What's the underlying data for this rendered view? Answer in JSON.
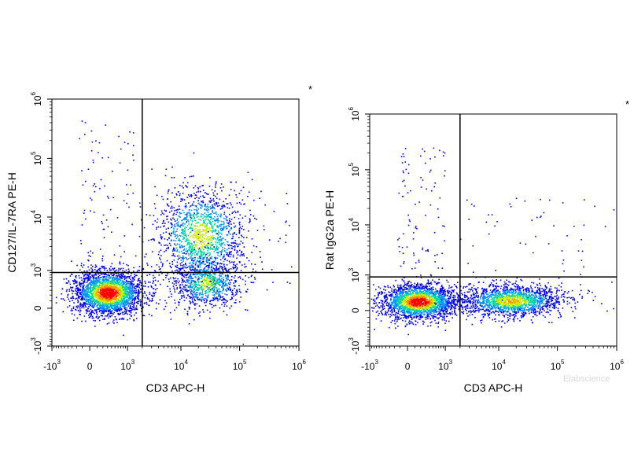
{
  "chart_data": [
    {
      "type": "scatter",
      "subtype": "flow-cytometry-density-dot-plot",
      "xlabel": "CD3 APC-H",
      "ylabel": "CD127/IL-7RA PE-H",
      "x_scale": "biexponential",
      "y_scale": "biexponential",
      "xlim": [
        -1000,
        1000000
      ],
      "ylim": [
        -1000,
        1000000
      ],
      "x_ticks": [
        {
          "value": -1000,
          "base": "-10",
          "exp": "3"
        },
        {
          "value": 0,
          "base": "0",
          "exp": ""
        },
        {
          "value": 1000,
          "base": "10",
          "exp": "3"
        },
        {
          "value": 10000,
          "base": "10",
          "exp": "4"
        },
        {
          "value": 100000,
          "base": "10",
          "exp": "5"
        },
        {
          "value": 1000000,
          "base": "10",
          "exp": "6"
        }
      ],
      "y_ticks": [
        {
          "value": -1000,
          "base": "-10",
          "exp": "3"
        },
        {
          "value": 0,
          "base": "0",
          "exp": ""
        },
        {
          "value": 1000,
          "base": "10",
          "exp": "3"
        },
        {
          "value": 10000,
          "base": "10",
          "exp": "4"
        },
        {
          "value": 100000,
          "base": "10",
          "exp": "5"
        },
        {
          "value": 1000000,
          "base": "10",
          "exp": "6"
        }
      ],
      "quadrant_gate": {
        "x": 2000,
        "y": 900
      },
      "corner_mark": "*",
      "populations": [
        {
          "name_role": "CD3-negative cluster",
          "x_center": 350,
          "y_center": 200,
          "relative_density": "very high (red core)"
        },
        {
          "name_role": "CD3-positive CD127+ cluster",
          "x_center": 14000,
          "y_center": 2500,
          "relative_density": "high"
        },
        {
          "name_role": "CD3-positive CD127-low tail",
          "x_center": 16000,
          "y_center": 400,
          "relative_density": "medium"
        }
      ],
      "color_scale": [
        "#0000ff",
        "#00a0ff",
        "#00e080",
        "#ffff00",
        "#ff8000",
        "#ff0000"
      ]
    },
    {
      "type": "scatter",
      "subtype": "flow-cytometry-density-dot-plot",
      "xlabel": "CD3 APC-H",
      "ylabel": "Rat IgG2a PE-H",
      "x_scale": "biexponential",
      "y_scale": "biexponential",
      "xlim": [
        -1000,
        1000000
      ],
      "ylim": [
        -1000,
        1000000
      ],
      "x_ticks": [
        {
          "value": -1000,
          "base": "-10",
          "exp": "3"
        },
        {
          "value": 0,
          "base": "0",
          "exp": ""
        },
        {
          "value": 1000,
          "base": "10",
          "exp": "3"
        },
        {
          "value": 10000,
          "base": "10",
          "exp": "4"
        },
        {
          "value": 100000,
          "base": "10",
          "exp": "5"
        },
        {
          "value": 1000000,
          "base": "10",
          "exp": "6"
        }
      ],
      "y_ticks": [
        {
          "value": -1000,
          "base": "-10",
          "exp": "3"
        },
        {
          "value": 0,
          "base": "0",
          "exp": ""
        },
        {
          "value": 1000,
          "base": "10",
          "exp": "3"
        },
        {
          "value": 10000,
          "base": "10",
          "exp": "4"
        },
        {
          "value": 100000,
          "base": "10",
          "exp": "5"
        },
        {
          "value": 1000000,
          "base": "10",
          "exp": "6"
        }
      ],
      "quadrant_gate": {
        "x": 2000,
        "y": 900
      },
      "corner_mark": "*",
      "populations": [
        {
          "name_role": "CD3-negative cluster",
          "x_center": 350,
          "y_center": 150,
          "relative_density": "very high (red core)"
        },
        {
          "name_role": "CD3-positive cluster",
          "x_center": 14000,
          "y_center": 150,
          "relative_density": "high"
        }
      ],
      "color_scale": [
        "#0000ff",
        "#00a0ff",
        "#00e080",
        "#ffff00",
        "#ff8000",
        "#ff0000"
      ]
    }
  ],
  "watermark": "Elabscience"
}
